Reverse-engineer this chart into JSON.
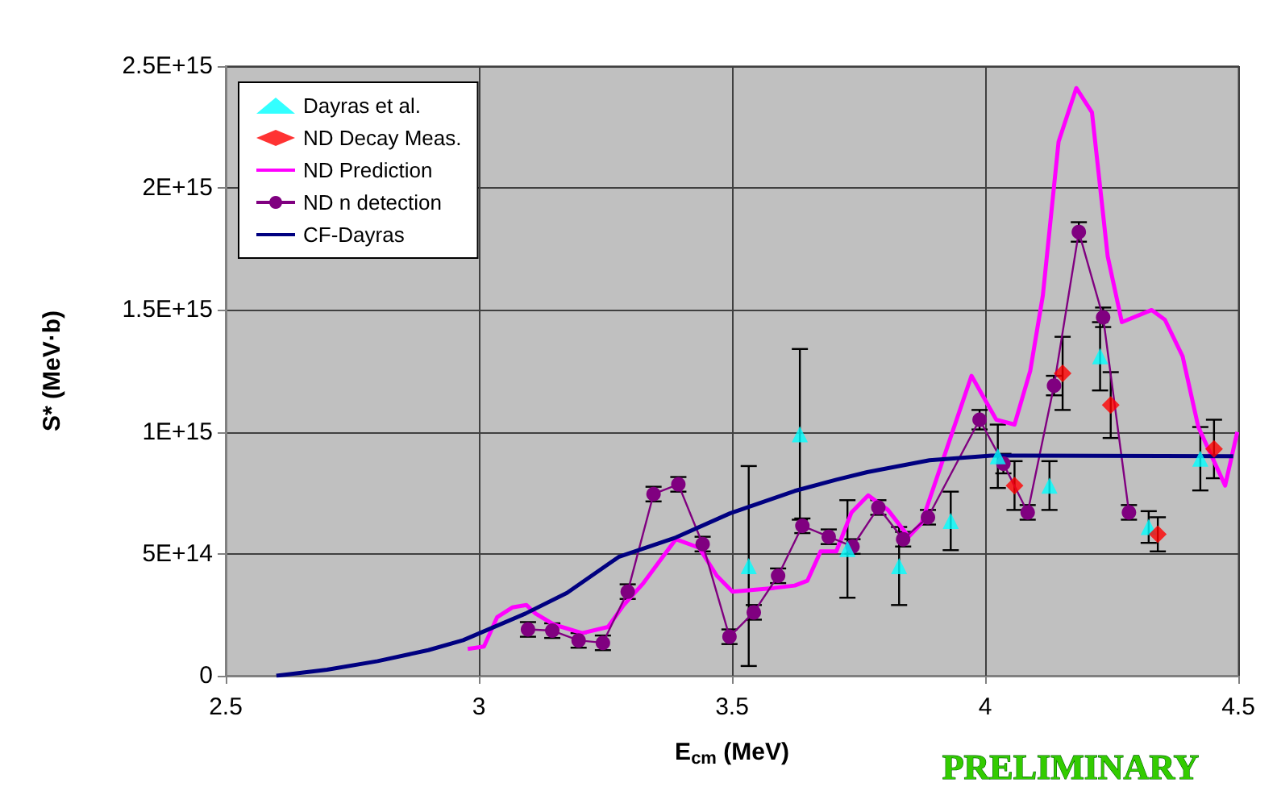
{
  "chart_data": {
    "type": "scatter",
    "xlabel": "E$_{cm}$ (MeV)",
    "ylabel": "S* (MeV·b)",
    "xlim": [
      2.5,
      4.5
    ],
    "xticks": [
      2.5,
      3,
      3.5,
      4,
      4.5
    ],
    "ylim": [
      0,
      2500000000000000.0
    ],
    "yticks": [
      {
        "value": 0,
        "label": "0"
      },
      {
        "value": 500000000000000.0,
        "label": "5E+14"
      },
      {
        "value": 1000000000000000.0,
        "label": "1E+15"
      },
      {
        "value": 1500000000000000.0,
        "label": "1.5E+15"
      },
      {
        "value": 2000000000000000.0,
        "label": "2E+15"
      },
      {
        "value": 2500000000000000.0,
        "label": "2.5E+15"
      }
    ],
    "grid": true,
    "legend": "top left",
    "annotations": [
      "PRELIMINARY"
    ],
    "series": [
      {
        "name": "Dayras et al.",
        "marker": "triangle",
        "color": "#00ffff",
        "x": [
          3.533,
          3.634,
          3.728,
          3.83,
          3.932,
          4.025,
          4.127,
          4.227,
          4.323,
          4.425
        ],
        "values": [
          450000000000000.0,
          990000000000000.0,
          520000000000000.0,
          450000000000000.0,
          635000000000000.0,
          900000000000000.0,
          780000000000000.0,
          1310000000000000.0,
          610000000000000.0,
          890000000000000.0
        ],
        "errors": [
          410000000000000.0,
          350000000000000.0,
          200000000000000.0,
          160000000000000.0,
          120000000000000.0,
          130000000000000.0,
          100000000000000.0,
          140000000000000.0,
          65000000000000.0,
          130000000000000.0
        ]
      },
      {
        "name": "ND Decay Meas.",
        "marker": "diamond",
        "color": "#ff0000",
        "x": [
          4.058,
          4.153,
          4.248,
          4.341,
          4.452
        ],
        "values": [
          780000000000000.0,
          1240000000000000.0,
          1110000000000000.0,
          580000000000000.0,
          930000000000000.0
        ],
        "errors": [
          100000000000000.0,
          150000000000000.0,
          135000000000000.0,
          70000000000000.0,
          120000000000000.0
        ]
      },
      {
        "name": "ND Prediction",
        "type": "line",
        "marker": "none",
        "color": "#ff00ff",
        "x": [
          2.978,
          3.01,
          3.036,
          3.066,
          3.094,
          3.112,
          3.148,
          3.204,
          3.255,
          3.286,
          3.325,
          3.389,
          3.435,
          3.47,
          3.501,
          3.583,
          3.624,
          3.649,
          3.675,
          3.706,
          3.736,
          3.769,
          3.808,
          3.849,
          3.874,
          3.973,
          4.022,
          4.058,
          4.089,
          4.114,
          4.145,
          4.18,
          4.211,
          4.242,
          4.27,
          4.329,
          4.355,
          4.39,
          4.421,
          4.474,
          4.498
        ],
        "values": [
          110000000000000.0,
          120000000000000.0,
          240000000000000.0,
          280000000000000.0,
          290000000000000.0,
          255000000000000.0,
          210000000000000.0,
          175000000000000.0,
          200000000000000.0,
          290000000000000.0,
          380000000000000.0,
          560000000000000.0,
          525000000000000.0,
          410000000000000.0,
          345000000000000.0,
          360000000000000.0,
          370000000000000.0,
          390000000000000.0,
          510000000000000.0,
          510000000000000.0,
          670000000000000.0,
          740000000000000.0,
          680000000000000.0,
          570000000000000.0,
          625000000000000.0,
          1230000000000000.0,
          1050000000000000.0,
          1030000000000000.0,
          1250000000000000.0,
          1560000000000000.0,
          2190000000000000.0,
          2410000000000000.0,
          2310000000000000.0,
          1720000000000000.0,
          1450000000000000.0,
          1500000000000000.0,
          1460000000000000.0,
          1310000000000000.0,
          1020000000000000.0,
          780000000000000.0,
          1000000000000000.0
        ]
      },
      {
        "name": "ND n detection",
        "type": "line",
        "marker": "circle",
        "color": "#800080",
        "x": [
          3.097,
          3.145,
          3.197,
          3.245,
          3.294,
          3.345,
          3.394,
          3.442,
          3.495,
          3.543,
          3.591,
          3.639,
          3.691,
          3.738,
          3.789,
          3.838,
          3.887,
          3.989,
          4.036,
          4.084,
          4.136,
          4.185,
          4.233,
          4.284
        ],
        "values": [
          190000000000000.0,
          185000000000000.0,
          145000000000000.0,
          135000000000000.0,
          345000000000000.0,
          745000000000000.0,
          785000000000000.0,
          540000000000000.0,
          160000000000000.0,
          260000000000000.0,
          410000000000000.0,
          615000000000000.0,
          570000000000000.0,
          530000000000000.0,
          690000000000000.0,
          560000000000000.0,
          650000000000000.0,
          1050000000000000.0,
          870000000000000.0,
          670000000000000.0,
          1190000000000000.0,
          1820000000000000.0,
          1470000000000000.0,
          670000000000000.0
        ],
        "errors": [
          30000000000000.0,
          30000000000000.0,
          30000000000000.0,
          30000000000000.0,
          30000000000000.0,
          30000000000000.0,
          30000000000000.0,
          30000000000000.0,
          30000000000000.0,
          30000000000000.0,
          30000000000000.0,
          30000000000000.0,
          30000000000000.0,
          30000000000000.0,
          30000000000000.0,
          30000000000000.0,
          30000000000000.0,
          40000000000000.0,
          40000000000000.0,
          30000000000000.0,
          40000000000000.0,
          40000000000000.0,
          40000000000000.0,
          30000000000000.0
        ]
      },
      {
        "name": "CF-Dayras",
        "type": "line",
        "marker": "none",
        "color": "#000080",
        "x": [
          2.6,
          2.7,
          2.8,
          2.9,
          2.969,
          3.092,
          3.174,
          3.276,
          3.389,
          3.496,
          3.624,
          3.706,
          3.767,
          3.89,
          4.012,
          4.49
        ],
        "values": [
          0,
          25000000000000.0,
          60000000000000.0,
          105000000000000.0,
          146000000000000.0,
          255000000000000.0,
          340000000000000.0,
          487000000000000.0,
          567000000000000.0,
          666000000000000.0,
          758000000000000.0,
          804000000000000.0,
          835000000000000.0,
          884000000000000.0,
          903000000000000.0,
          900000000000000.0
        ]
      }
    ]
  }
}
